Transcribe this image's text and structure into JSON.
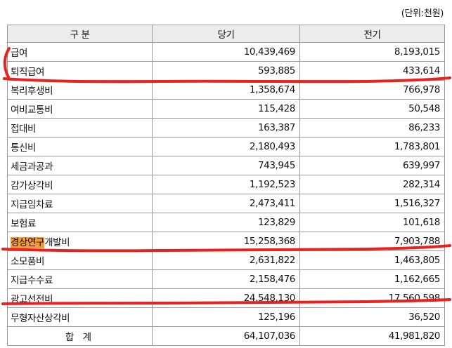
{
  "unit_label": "(단위:천원)",
  "columns": [
    "구 분",
    "당기",
    "전기"
  ],
  "rows": [
    {
      "label": "급여",
      "current": "10,439,469",
      "previous": "8,193,015"
    },
    {
      "label": "퇴직급여",
      "current": "593,885",
      "previous": "433,614"
    },
    {
      "label": "복리후생비",
      "current": "1,358,674",
      "previous": "766,978"
    },
    {
      "label": "여비교통비",
      "current": "115,428",
      "previous": "50,548"
    },
    {
      "label": "접대비",
      "current": "163,387",
      "previous": "86,233"
    },
    {
      "label": "통신비",
      "current": "2,180,493",
      "previous": "1,783,801"
    },
    {
      "label": "세금과공과",
      "current": "743,945",
      "previous": "639,997"
    },
    {
      "label": "감가상각비",
      "current": "1,192,523",
      "previous": "282,314"
    },
    {
      "label": "지급임차료",
      "current": "2,473,411",
      "previous": "1,516,327"
    },
    {
      "label": "보험료",
      "current": "123,829",
      "previous": "101,618"
    },
    {
      "label_highlight": "경상연구",
      "label_rest": "개발비",
      "current": "15,258,368",
      "previous": "7,903,788"
    },
    {
      "label": "소모품비",
      "current": "2,631,822",
      "previous": "1,463,805"
    },
    {
      "label": "지급수수료",
      "current": "2,158,476",
      "previous": "1,162,665"
    },
    {
      "label": "광고선전비",
      "current": "24,548,130",
      "previous": "17,560,598"
    },
    {
      "label": "무형자산상각비",
      "current": "125,196",
      "previous": "36,520"
    }
  ],
  "total": {
    "label": "합 계",
    "current": "64,107,036",
    "previous": "41,981,820"
  },
  "colors": {
    "highlight": "#f39a3a",
    "annotation": "#e8231f",
    "header_bg": "#ececec",
    "border": "#9a9a9a"
  }
}
